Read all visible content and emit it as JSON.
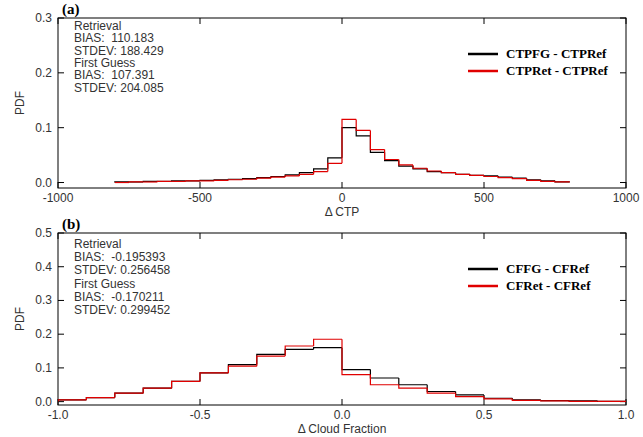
{
  "chart_data": [
    {
      "type": "histogram",
      "title": "(a)",
      "x_label": "Δ CTP",
      "y_label": "PDF",
      "annotations": [
        "Retrieval",
        "BIAS:  110.183",
        "STDEV: 188.429",
        "First Guess",
        "BIAS:  107.391",
        "STDEV: 204.085"
      ],
      "bins": [
        -800,
        -750,
        -700,
        -650,
        -600,
        -550,
        -500,
        -450,
        -400,
        -350,
        -300,
        -250,
        -200,
        -150,
        -100,
        -50,
        0,
        50,
        100,
        150,
        200,
        250,
        300,
        350,
        400,
        450,
        500,
        550,
        600,
        650,
        700,
        750,
        800
      ],
      "series": [
        {
          "name": "CTPFG - CTPRef",
          "color": "#000000",
          "values": [
            0.001,
            0.001,
            0.002,
            0.002,
            0.003,
            0.003,
            0.004,
            0.005,
            0.006,
            0.007,
            0.009,
            0.011,
            0.014,
            0.018,
            0.025,
            0.045,
            0.1,
            0.085,
            0.055,
            0.04,
            0.03,
            0.025,
            0.02,
            0.018,
            0.015,
            0.013,
            0.012,
            0.01,
            0.008,
            0.005,
            0.003,
            0.001
          ]
        },
        {
          "name": "CTPRet - CTPRef",
          "color": "#e00000",
          "values": [
            0.0,
            0.001,
            0.001,
            0.002,
            0.002,
            0.003,
            0.003,
            0.004,
            0.005,
            0.006,
            0.008,
            0.01,
            0.012,
            0.015,
            0.02,
            0.035,
            0.115,
            0.095,
            0.06,
            0.042,
            0.032,
            0.026,
            0.021,
            0.018,
            0.015,
            0.013,
            0.011,
            0.009,
            0.007,
            0.004,
            0.002,
            0.001
          ]
        }
      ],
      "xlim": [
        -1000,
        1000
      ],
      "xticks": [
        -1000,
        -500,
        0,
        500,
        1000
      ],
      "ylim": [
        -0.01,
        0.3
      ],
      "yticks": [
        {
          "value": 0,
          "label": "0.0"
        },
        {
          "value": 0.1,
          "label": "0.1"
        },
        {
          "value": 0.2,
          "label": "0.2"
        },
        {
          "value": 0.3,
          "label": "0.3"
        }
      ],
      "legend": "upper right"
    },
    {
      "type": "histogram",
      "title": "(b)",
      "x_label": "Δ Cloud Fraction",
      "y_label": "PDF",
      "annotations": [
        "Retrieval",
        "BIAS:  -0.195393",
        "STDEV: 0.256458",
        "First Guess",
        "BIAS:  -0.170211",
        "STDEV: 0.299452"
      ],
      "bins": [
        -1.0,
        -0.9,
        -0.8,
        -0.7,
        -0.6,
        -0.5,
        -0.4,
        -0.3,
        -0.2,
        -0.1,
        0.0,
        0.1,
        0.2,
        0.3,
        0.4,
        0.5,
        0.6,
        0.7,
        0.8,
        0.9,
        1.0
      ],
      "series": [
        {
          "name": "CFFG - CFRef",
          "color": "#000000",
          "values": [
            0.005,
            0.012,
            0.025,
            0.04,
            0.06,
            0.085,
            0.11,
            0.14,
            0.155,
            0.16,
            0.095,
            0.07,
            0.05,
            0.03,
            0.02,
            0.01,
            0.005,
            0.003,
            0.002,
            0.001
          ]
        },
        {
          "name": "CFRet - CFRef",
          "color": "#e00000",
          "values": [
            0.005,
            0.012,
            0.025,
            0.04,
            0.06,
            0.085,
            0.105,
            0.135,
            0.165,
            0.185,
            0.08,
            0.05,
            0.04,
            0.025,
            0.015,
            0.008,
            0.004,
            0.002,
            0.001,
            0.001
          ]
        }
      ],
      "xlim": [
        -1.0,
        1.0
      ],
      "xticks": [
        {
          "value": -1.0,
          "label": "-1.0"
        },
        {
          "value": -0.5,
          "label": "-0.5"
        },
        {
          "value": 0,
          "label": "0.0"
        },
        {
          "value": 0.5,
          "label": "0.5"
        },
        {
          "value": 1.0,
          "label": "1.0"
        }
      ],
      "ylim": [
        -0.01,
        0.5
      ],
      "yticks": [
        {
          "value": 0,
          "label": "0.0"
        },
        {
          "value": 0.1,
          "label": "0.1"
        },
        {
          "value": 0.2,
          "label": "0.2"
        },
        {
          "value": 0.3,
          "label": "0.3"
        },
        {
          "value": 0.4,
          "label": "0.4"
        },
        {
          "value": 0.5,
          "label": "0.5"
        }
      ],
      "legend": "upper right"
    }
  ]
}
